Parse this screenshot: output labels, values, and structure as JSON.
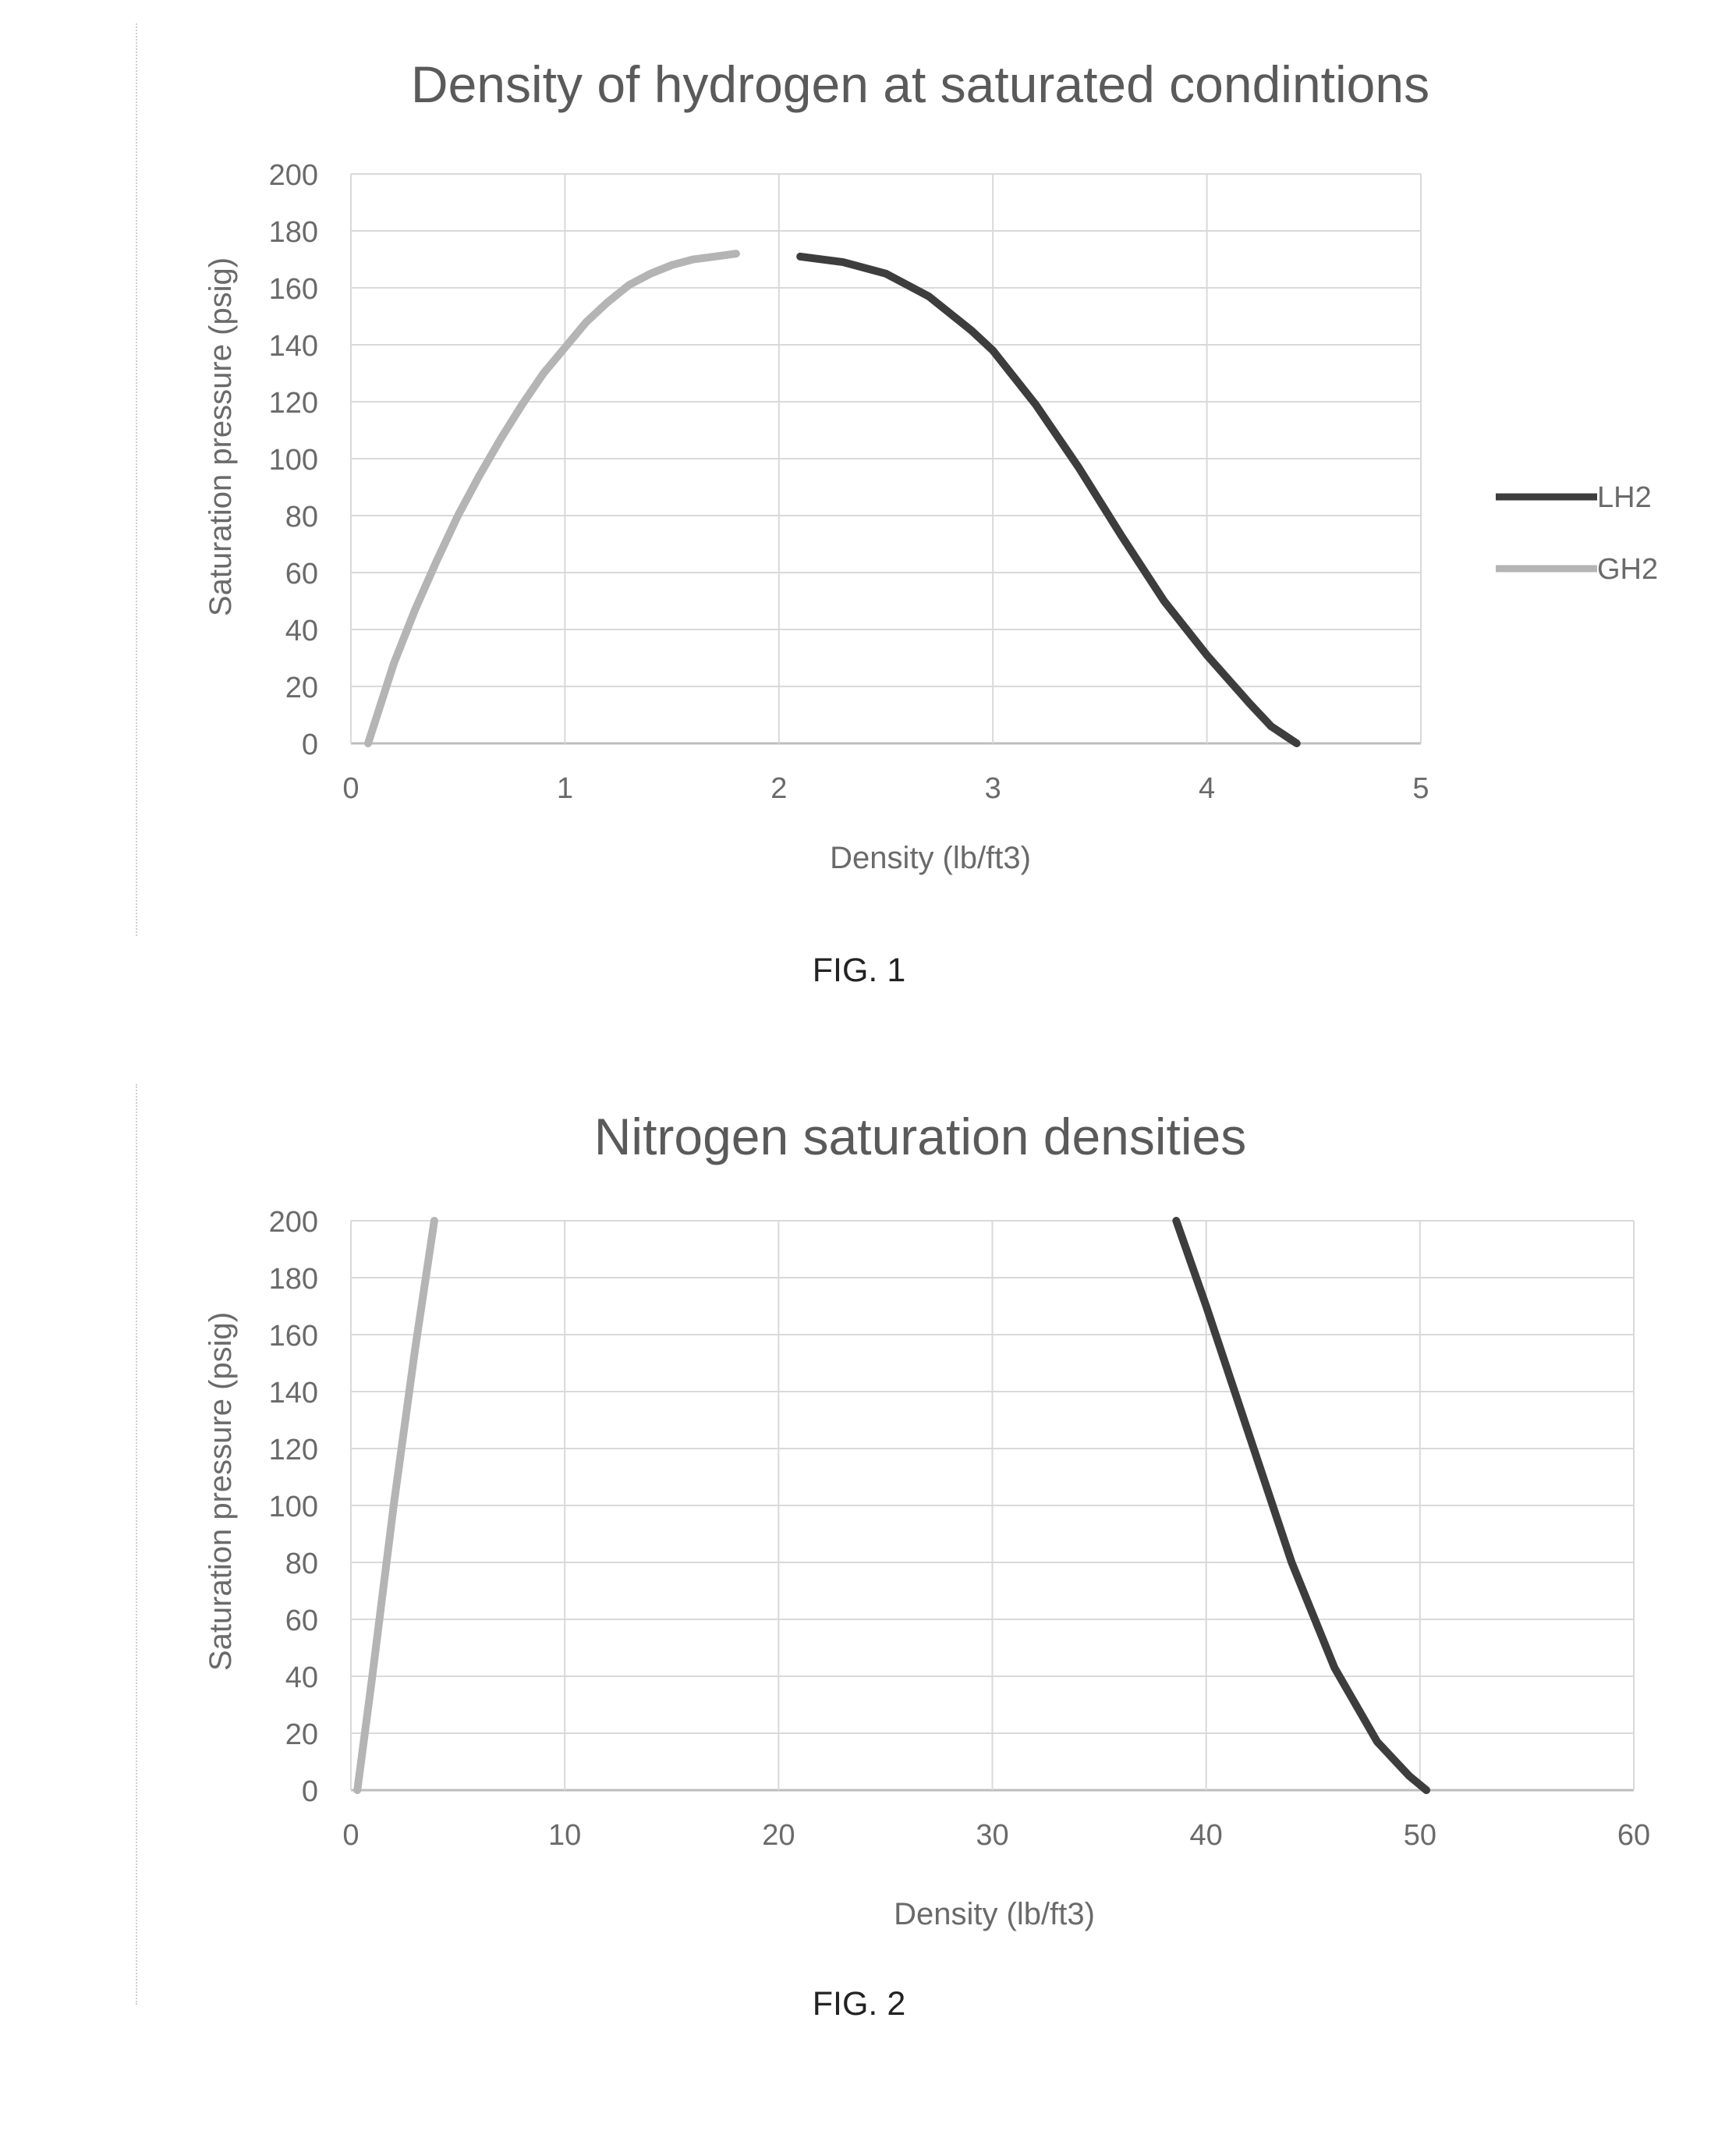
{
  "figures": [
    {
      "caption": "FIG. 1"
    },
    {
      "caption": "FIG. 2"
    }
  ],
  "chart_data": [
    {
      "type": "line",
      "title": "Density of hydrogen at saturated condintions",
      "xlabel": "Density (lb/ft3)",
      "ylabel": "Saturation pressure (psig)",
      "xlim": [
        0,
        5
      ],
      "ylim": [
        0,
        200
      ],
      "xticks": [
        0,
        1,
        2,
        3,
        4,
        5
      ],
      "yticks": [
        0,
        20,
        40,
        60,
        80,
        100,
        120,
        140,
        160,
        180,
        200
      ],
      "grid": true,
      "legend": "right",
      "series": [
        {
          "name": "LH2",
          "color": "#3d3d3d",
          "x": [
            2.1,
            2.3,
            2.5,
            2.7,
            2.9,
            3.0,
            3.2,
            3.4,
            3.6,
            3.8,
            4.0,
            4.2,
            4.3,
            4.42
          ],
          "y": [
            171,
            169,
            165,
            157,
            145,
            138,
            119,
            97,
            73,
            50,
            31,
            14,
            6,
            0
          ]
        },
        {
          "name": "GH2",
          "color": "#b4b4b4",
          "x": [
            0.08,
            0.2,
            0.3,
            0.4,
            0.5,
            0.6,
            0.7,
            0.8,
            0.9,
            1.0,
            1.1,
            1.2,
            1.3,
            1.4,
            1.5,
            1.6,
            1.7,
            1.8
          ],
          "y": [
            0,
            28,
            47,
            64,
            80,
            94,
            107,
            119,
            130,
            139,
            148,
            155,
            161,
            165,
            168,
            170,
            171,
            172
          ]
        }
      ]
    },
    {
      "type": "line",
      "title": "Nitrogen saturation densities",
      "xlabel": "Density (lb/ft3)",
      "ylabel": "Saturation pressure (psig)",
      "xlim": [
        0,
        60
      ],
      "ylim": [
        0,
        200
      ],
      "xticks": [
        0,
        10,
        20,
        30,
        40,
        50,
        60
      ],
      "yticks": [
        0,
        20,
        40,
        60,
        80,
        100,
        120,
        140,
        160,
        180,
        200
      ],
      "grid": true,
      "series": [
        {
          "color": "#b4b4b4",
          "x": [
            0.3,
            1.0,
            2.0,
            3.0,
            3.9
          ],
          "y": [
            0,
            40,
            100,
            155,
            200
          ]
        },
        {
          "color": "#3d3d3d",
          "x": [
            38.6,
            40.0,
            42.0,
            44.0,
            46.0,
            48.0,
            49.5,
            50.3
          ],
          "y": [
            200,
            170,
            125,
            80,
            43,
            17,
            5,
            0
          ]
        }
      ]
    }
  ]
}
